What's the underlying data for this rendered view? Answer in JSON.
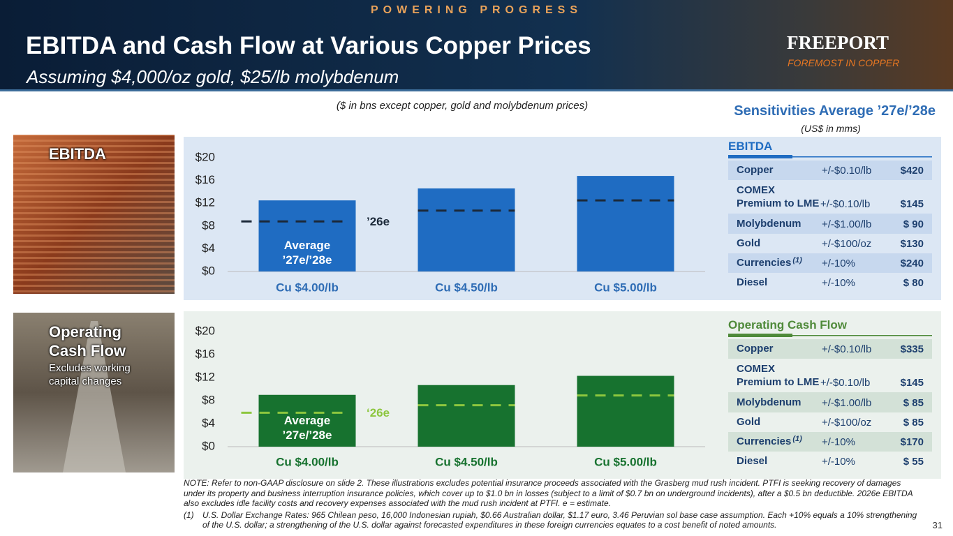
{
  "header": {
    "tagline": "POWERING PROGRESS",
    "title": "EBITDA and Cash Flow at Various Copper Prices",
    "subtitle": "Assuming $4,000/oz gold, $25/lb molybdenum",
    "logo": "FREEPORT",
    "logo_tagline": "FOREMOST IN COPPER"
  },
  "units_note": "($ in bns except copper, gold and molybdenum prices)",
  "chart_data": [
    {
      "type": "bar",
      "label": "EBITDA",
      "categories": [
        "Cu $4.00/lb",
        "Cu $4.50/lb",
        "Cu $5.00/lb"
      ],
      "series": [
        {
          "name": "Average ’27e/’28e",
          "color": "#1f6cc2",
          "values": [
            12.5,
            14.6,
            16.8
          ]
        },
        {
          "name": "’26e",
          "color": "#1b2838",
          "style": "dashed",
          "values": [
            8.8,
            10.7,
            12.5
          ]
        }
      ],
      "ylim": [
        0,
        20
      ],
      "yticks": [
        {
          "value": 0,
          "label": "$0"
        },
        {
          "value": 4,
          "label": "$4"
        },
        {
          "value": 8,
          "label": "$8"
        },
        {
          "value": 12,
          "label": "$12"
        },
        {
          "value": 16,
          "label": "$16"
        },
        {
          "value": 20,
          "label": "$20"
        }
      ]
    },
    {
      "type": "bar",
      "label": "Operating Cash Flow",
      "note": "Excludes working capital changes",
      "categories": [
        "Cu $4.00/lb",
        "Cu $4.50/lb",
        "Cu $5.00/lb"
      ],
      "series": [
        {
          "name": "Average ’27e/’28e",
          "color": "#17722f",
          "values": [
            9.0,
            10.7,
            12.3
          ]
        },
        {
          "name": "‘26e",
          "color": "#8dc63f",
          "style": "dashed",
          "values": [
            5.9,
            7.2,
            8.9
          ]
        }
      ],
      "ylim": [
        0,
        20
      ],
      "yticks": [
        {
          "value": 0,
          "label": "$0"
        },
        {
          "value": 4,
          "label": "$4"
        },
        {
          "value": 8,
          "label": "$8"
        },
        {
          "value": 12,
          "label": "$12"
        },
        {
          "value": 16,
          "label": "$16"
        },
        {
          "value": 20,
          "label": "$20"
        }
      ]
    }
  ],
  "sensitivities": {
    "title": "Sensitivities Average ’27e/’28e",
    "units": "(US$ in mms)",
    "tables": [
      {
        "title": "EBITDA",
        "color": "#1f6cc2",
        "rows": [
          {
            "item": "Copper",
            "change": "+/-$0.10/lb",
            "value": "$420"
          },
          {
            "item": "COMEX Premium to LME",
            "change": "+/-$0.10/lb",
            "value": "$145"
          },
          {
            "item": "Molybdenum",
            "change": "+/-$1.00/lb",
            "value": "$ 90"
          },
          {
            "item": "Gold",
            "change": "+/-$100/oz",
            "value": "$130"
          },
          {
            "item": "Currencies",
            "ref": "(1)",
            "change": "+/-10%",
            "value": "$240"
          },
          {
            "item": "Diesel",
            "change": "+/-10%",
            "value": "$ 80"
          }
        ]
      },
      {
        "title": "Operating Cash Flow",
        "color": "#4f8a3a",
        "rows": [
          {
            "item": "Copper",
            "change": "+/-$0.10/lb",
            "value": "$335"
          },
          {
            "item": "COMEX Premium to LME",
            "change": "+/-$0.10/lb",
            "value": "$145"
          },
          {
            "item": "Molybdenum",
            "change": "+/-$1.00/lb",
            "value": "$ 85"
          },
          {
            "item": "Gold",
            "change": "+/-$100/oz",
            "value": "$ 85"
          },
          {
            "item": "Currencies",
            "ref": "(1)",
            "change": "+/-10%",
            "value": "$170"
          },
          {
            "item": "Diesel",
            "change": "+/-10%",
            "value": "$ 55"
          }
        ]
      }
    ]
  },
  "notes": {
    "note": "NOTE: Refer to non-GAAP disclosure on slide 2. These illustrations excludes potential insurance proceeds associated with the Grasberg mud rush incident. PTFI is seeking recovery of damages under its property and business interruption insurance policies, which cover up to $1.0 bn in losses (subject to a limit of $0.7 bn on underground incidents), after a $0.5 bn deductible. 2026e EBITDA also excludes idle facility costs and recovery expenses associated with the mud rush incident at PTFI.   e = estimate.",
    "footnote_marker": "(1)",
    "footnote": "U.S. Dollar Exchange Rates: 965 Chilean peso, 16,000 Indonesian rupiah, $0.66 Australian dollar, $1.17 euro, 3.46 Peruvian sol base case assumption. Each +10% equals a 10% strengthening of the U.S. dollar; a strengthening of the U.S. dollar against forecasted expenditures in these foreign currencies equates to a cost benefit of noted amounts."
  },
  "page_number": "31"
}
